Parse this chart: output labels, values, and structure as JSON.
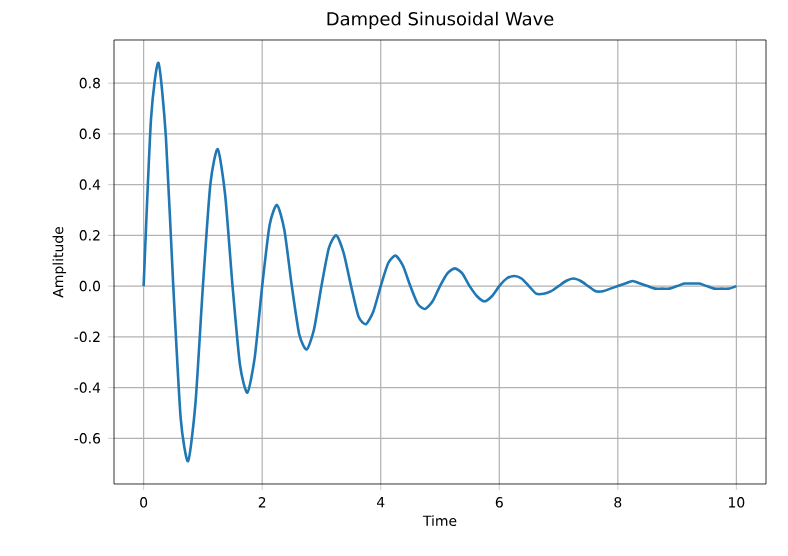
{
  "chart_data": {
    "type": "line",
    "title": "Damped Sinusoidal Wave",
    "xlabel": "Time",
    "ylabel": "Amplitude",
    "x": [
      0,
      0.125,
      0.25,
      0.375,
      0.5,
      0.625,
      0.75,
      0.875,
      1,
      1.125,
      1.25,
      1.375,
      1.5,
      1.625,
      1.75,
      1.875,
      2,
      2.125,
      2.25,
      2.375,
      2.5,
      2.625,
      2.75,
      2.875,
      3,
      3.125,
      3.25,
      3.375,
      3.5,
      3.625,
      3.75,
      3.875,
      4,
      4.125,
      4.25,
      4.375,
      4.5,
      4.625,
      4.75,
      4.875,
      5,
      5.125,
      5.25,
      5.375,
      5.5,
      5.625,
      5.75,
      5.875,
      6,
      6.125,
      6.25,
      6.375,
      6.5,
      6.625,
      6.75,
      6.875,
      7,
      7.125,
      7.25,
      7.375,
      7.5,
      7.625,
      7.75,
      7.875,
      8,
      8.125,
      8.25,
      8.375,
      8.5,
      8.625,
      8.75,
      8.875,
      9,
      9.125,
      9.25,
      9.375,
      9.5,
      9.625,
      9.75,
      9.875,
      10
    ],
    "series": [
      {
        "color": "#1f77b4",
        "values": [
          0,
          0.66,
          0.88,
          0.59,
          0,
          -0.52,
          -0.69,
          -0.46,
          0,
          0.4,
          0.54,
          0.36,
          0,
          -0.31,
          -0.42,
          -0.28,
          0,
          0.24,
          0.32,
          0.22,
          0,
          -0.19,
          -0.25,
          -0.17,
          0,
          0.15,
          0.2,
          0.13,
          0,
          -0.12,
          -0.15,
          -0.1,
          0,
          0.09,
          0.12,
          0.08,
          0,
          -0.07,
          -0.09,
          -0.06,
          0,
          0.05,
          0.07,
          0.05,
          0,
          -0.04,
          -0.06,
          -0.04,
          0,
          0.03,
          0.04,
          0.03,
          0,
          -0.03,
          -0.03,
          -0.02,
          0,
          0.02,
          0.03,
          0.02,
          0,
          -0.02,
          -0.02,
          -0.01,
          0,
          0.01,
          0.02,
          0.01,
          0,
          -0.01,
          -0.01,
          -0.01,
          0,
          0.01,
          0.01,
          0.01,
          0,
          -0.01,
          -0.01,
          -0.01,
          0
        ]
      }
    ],
    "xlim": [
      -0.5,
      10.5
    ],
    "ylim": [
      -0.78,
      0.97
    ],
    "xticks": [
      0,
      2,
      4,
      6,
      8,
      10
    ],
    "yticks": [
      -0.6,
      -0.4,
      -0.2,
      {
        "value": 0,
        "label": "0.0"
      },
      0.2,
      0.4,
      0.6,
      0.8
    ],
    "grid": true,
    "line_style": "solid",
    "marker": "none"
  }
}
